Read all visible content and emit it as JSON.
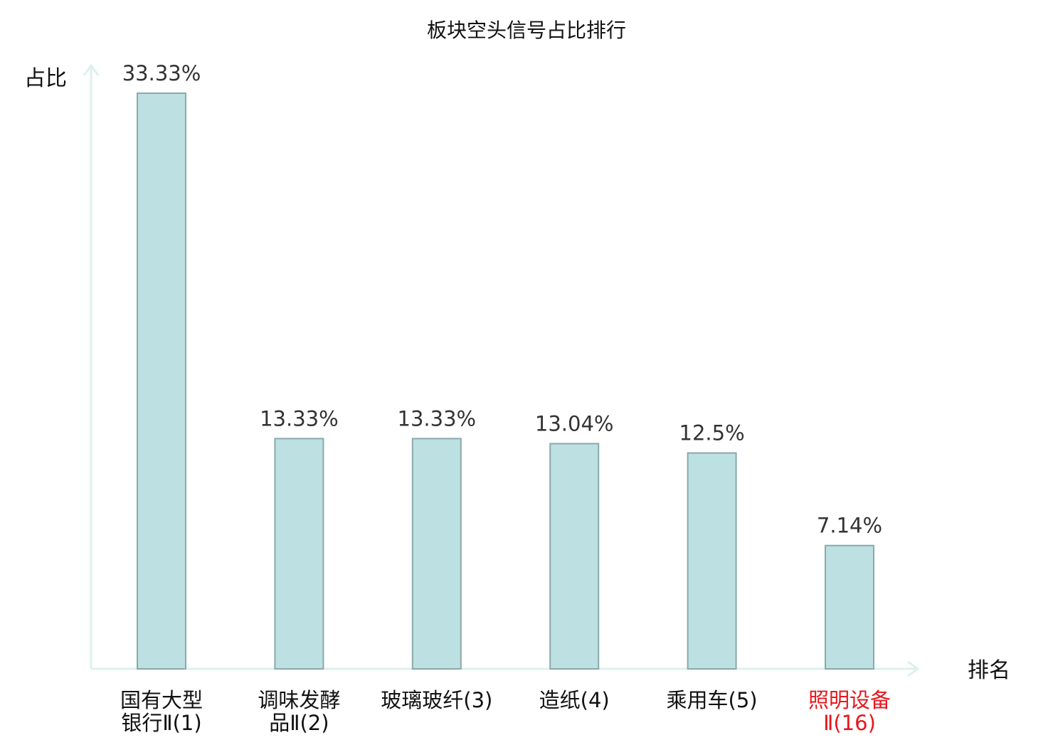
{
  "chart_data": {
    "type": "bar",
    "title": "板块空头信号占比排行",
    "ylabel": "占比",
    "xlabel": "排名",
    "categories": [
      [
        "国有大型",
        "银行Ⅱ(1)"
      ],
      [
        "调味发酵",
        "品Ⅱ(2)"
      ],
      [
        "玻璃玻纤(3)"
      ],
      [
        "造纸(4)"
      ],
      [
        "乘用车(5)"
      ],
      [
        "照明设备",
        "Ⅱ(16)"
      ]
    ],
    "values": [
      33.33,
      13.33,
      13.33,
      13.04,
      12.5,
      7.14
    ],
    "value_labels": [
      "33.33%",
      "13.33%",
      "13.33%",
      "13.04%",
      "12.5%",
      "7.14%"
    ],
    "highlight_index": 5,
    "ylim": [
      0,
      33.33
    ],
    "grid": false,
    "legend": "none",
    "colors": {
      "bar_fill": "#bde0e2",
      "bar_stroke": "#8aa9ab",
      "axis": "#ddf1ee",
      "highlight_text": "#e8161c"
    }
  }
}
